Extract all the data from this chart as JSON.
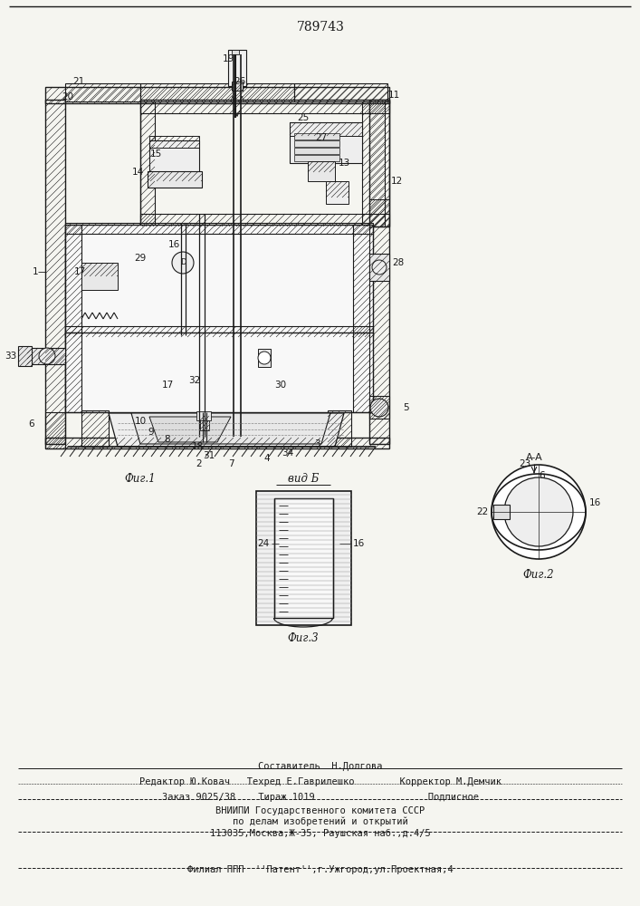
{
  "patent_number": "789743",
  "bg": "#f5f5f0",
  "lc": "#1a1a1a",
  "fig_width": 7.07,
  "fig_height": 10.0,
  "fig1_caption": "Фиг.1",
  "fig2_caption": "Фиг.2",
  "fig3_caption": "Фиг.3",
  "vidb_caption": "вид Б",
  "aa_caption": "A-A",
  "footer1": "Составитель  Н.Долгова",
  "footer2": "Редактор Ю.Ковач   Техред Е.Гаврилешко        Корректор М.Демчик",
  "footer3": "Заказ 9025/38    Тираж 1019                    Подписное",
  "footer4": "ВНИИПИ Государственного комитета СССР",
  "footer5": "по делам изобретений и открытий",
  "footer6": "113035,Москва,Ж-35, Раушская наб.,д.4/5",
  "footer7": "Филиал ППП  ''Патент'',г.Ужгород,ул.Проектная,4"
}
